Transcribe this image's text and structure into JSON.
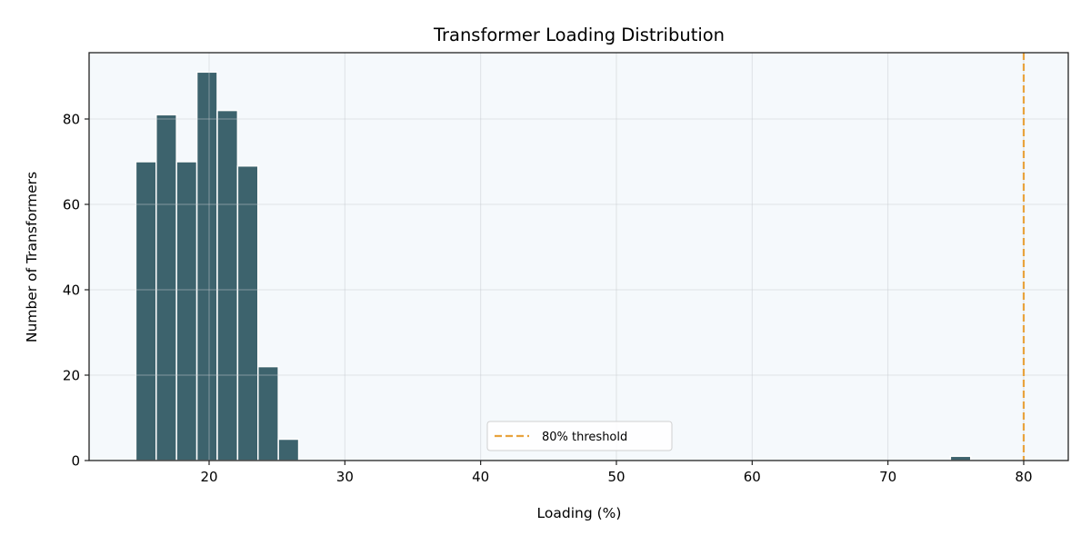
{
  "chart_data": {
    "type": "bar",
    "subtype": "histogram",
    "title": "Transformer Loading Distribution",
    "xlabel": "Loading (%)",
    "ylabel": "Number of Transformers",
    "xlim": [
      11.3,
      83.2
    ],
    "ylim": [
      0,
      95.5
    ],
    "xticks": [
      20,
      30,
      40,
      50,
      60,
      70,
      80
    ],
    "yticks": [
      0,
      20,
      40,
      60,
      80
    ],
    "grid": true,
    "bin_width": 1.5,
    "bins": [
      {
        "x0": 14.6,
        "x1": 16.1,
        "count": 70
      },
      {
        "x0": 16.1,
        "x1": 17.6,
        "count": 81
      },
      {
        "x0": 17.6,
        "x1": 19.1,
        "count": 70
      },
      {
        "x0": 19.1,
        "x1": 20.6,
        "count": 91
      },
      {
        "x0": 20.6,
        "x1": 22.1,
        "count": 82
      },
      {
        "x0": 22.1,
        "x1": 23.6,
        "count": 69
      },
      {
        "x0": 23.6,
        "x1": 25.1,
        "count": 22
      },
      {
        "x0": 25.1,
        "x1": 26.6,
        "count": 5
      },
      {
        "x0": 74.6,
        "x1": 76.1,
        "count": 1
      }
    ],
    "reference_line": {
      "x": 80,
      "label": "80% threshold",
      "style": "dashed",
      "color": "#e8a33d"
    },
    "legend": {
      "entries": [
        "80% threshold"
      ],
      "position": "lower center"
    },
    "colors": {
      "bar": "#3d636d",
      "bar_edge": "#ffffff",
      "plot_bg": "#f5f9fc",
      "threshold": "#e8a33d",
      "grid": "#dcdfe2"
    }
  }
}
